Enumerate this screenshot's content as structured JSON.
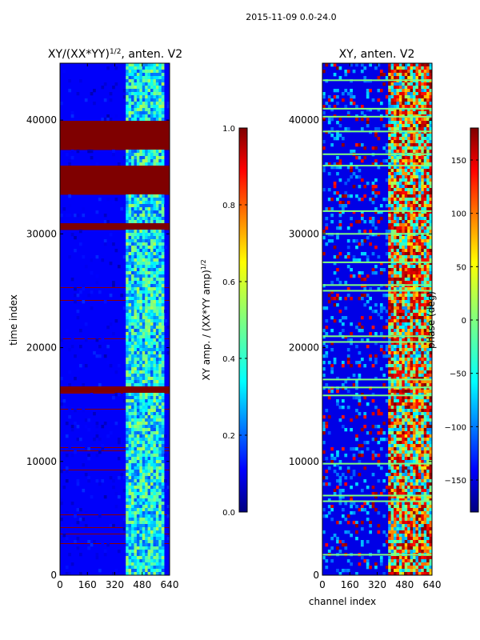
{
  "chart_data": [
    {
      "type": "heatmap",
      "suptitle": "2015-11-09 0.0-24.0",
      "title_main": "XY/(XX*YY)",
      "title_sup": "1/2",
      "title_tail": ", anten. V2",
      "xlabel": "",
      "ylabel": "time index",
      "xlim": [
        0,
        640
      ],
      "ylim": [
        0,
        45000
      ],
      "x_ticks": [
        0,
        160,
        320,
        480,
        640
      ],
      "x_tick_labels": [
        "0",
        "160",
        "320",
        "480",
        "640"
      ],
      "y_ticks": [
        0,
        10000,
        20000,
        30000,
        40000
      ],
      "y_tick_labels": [
        "0",
        "10000",
        "20000",
        "30000",
        "40000"
      ],
      "colorbar": {
        "label_main": "XY amp. / (XX*YY amp)",
        "label_sup": "1/2",
        "range": [
          0,
          1
        ],
        "ticks": [
          0.0,
          0.2,
          0.4,
          0.6,
          0.8,
          1.0
        ],
        "tick_labels": [
          "0.0",
          "0.2",
          "0.4",
          "0.6",
          "0.8",
          "1.0"
        ]
      },
      "saturated_time_bands": [
        [
          16000,
          16600
        ],
        [
          30500,
          31000
        ],
        [
          33500,
          35000
        ],
        [
          35000,
          36000
        ],
        [
          37500,
          38200
        ],
        [
          38200,
          39000
        ],
        [
          39200,
          39800
        ]
      ],
      "high_channel_range": [
        380,
        600
      ]
    },
    {
      "type": "heatmap",
      "title": "XY, anten. V2",
      "xlabel": "channel index",
      "ylabel": "",
      "xlim": [
        0,
        640
      ],
      "ylim": [
        0,
        45000
      ],
      "x_ticks": [
        0,
        160,
        320,
        480,
        640
      ],
      "x_tick_labels": [
        "0",
        "160",
        "320",
        "480",
        "640"
      ],
      "y_ticks": [
        0,
        10000,
        20000,
        30000,
        40000
      ],
      "y_tick_labels": [
        "0",
        "10000",
        "20000",
        "30000",
        "40000"
      ],
      "colorbar": {
        "label": "phase (deg)",
        "range": [
          -180,
          180
        ],
        "ticks": [
          -150,
          -100,
          -50,
          0,
          50,
          100,
          150
        ],
        "tick_labels": [
          "−150",
          "−100",
          "−50",
          "0",
          "50",
          "100",
          "150"
        ]
      },
      "flag_lines_time": [
        1800,
        6500,
        7000,
        9800,
        15800,
        16500,
        17200,
        20500,
        21000,
        25000,
        25500,
        27500,
        30000,
        32000,
        36000,
        37000,
        39000,
        40300,
        41000,
        43500
      ],
      "high_channel_range": [
        390,
        640
      ]
    }
  ]
}
